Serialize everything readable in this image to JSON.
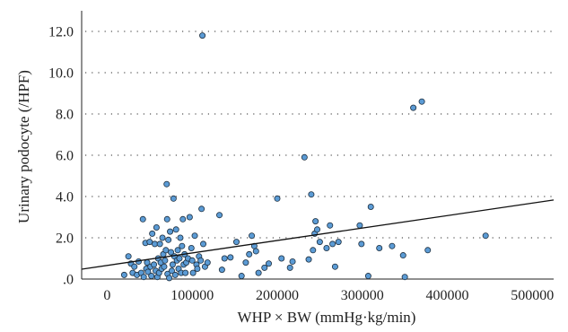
{
  "chart_data": {
    "type": "scatter",
    "title": "",
    "xlabel": "WHP × BW (mmHg·kg/min)",
    "ylabel": "Urinary podocyte (/HPF)",
    "xlim": [
      -30000,
      525000
    ],
    "ylim": [
      0,
      13.0
    ],
    "x_ticks": [
      0,
      100000,
      200000,
      300000,
      400000,
      500000
    ],
    "x_tick_labels": [
      "0",
      "100000",
      "200000",
      "300000",
      "400000",
      "500000"
    ],
    "y_ticks": [
      0,
      2,
      4,
      6,
      8,
      10,
      12
    ],
    "y_tick_labels": [
      ".0",
      "2.0",
      "4.0",
      "6.0",
      "8.0",
      "10.0",
      "12.0"
    ],
    "grid": {
      "horizontal": true,
      "vertical": false,
      "style": "dotted"
    },
    "marker_color": "#5b9bd5",
    "line_color": "#111111",
    "fit_line": {
      "x": [
        -30000,
        525000
      ],
      "y": [
        0.48,
        3.83
      ]
    },
    "series": [
      {
        "points": [
          [
            20000,
            0.2
          ],
          [
            25000,
            1.1
          ],
          [
            28000,
            0.75
          ],
          [
            30000,
            0.3
          ],
          [
            32000,
            0.6
          ],
          [
            35000,
            0.2
          ],
          [
            37000,
            0.85
          ],
          [
            40000,
            0.3
          ],
          [
            42000,
            2.9
          ],
          [
            43000,
            0.1
          ],
          [
            45000,
            1.75
          ],
          [
            46000,
            0.5
          ],
          [
            47000,
            0.8
          ],
          [
            48000,
            0.35
          ],
          [
            50000,
            1.8
          ],
          [
            51000,
            0.6
          ],
          [
            52000,
            0.15
          ],
          [
            53000,
            2.2
          ],
          [
            55000,
            0.7
          ],
          [
            56000,
            1.7
          ],
          [
            57000,
            0.4
          ],
          [
            58000,
            2.5
          ],
          [
            59000,
            0.1
          ],
          [
            60000,
            1.0
          ],
          [
            61000,
            0.3
          ],
          [
            62000,
            1.7
          ],
          [
            63000,
            0.8
          ],
          [
            64000,
            0.5
          ],
          [
            65000,
            2.0
          ],
          [
            66000,
            1.2
          ],
          [
            67000,
            0.6
          ],
          [
            68000,
            0.9
          ],
          [
            69000,
            1.4
          ],
          [
            70000,
            4.6
          ],
          [
            70500,
            2.9
          ],
          [
            71000,
            0.25
          ],
          [
            72000,
            1.9
          ],
          [
            73000,
            0.05
          ],
          [
            74000,
            2.3
          ],
          [
            75000,
            1.3
          ],
          [
            76000,
            0.4
          ],
          [
            77000,
            0.7
          ],
          [
            78000,
            3.9
          ],
          [
            79000,
            1.1
          ],
          [
            80000,
            0.2
          ],
          [
            81000,
            2.4
          ],
          [
            82000,
            0.9
          ],
          [
            83000,
            1.4
          ],
          [
            84000,
            0.5
          ],
          [
            85000,
            1.0
          ],
          [
            86000,
            2.0
          ],
          [
            87000,
            0.3
          ],
          [
            88000,
            1.6
          ],
          [
            89000,
            2.9
          ],
          [
            90000,
            0.7
          ],
          [
            91000,
            1.2
          ],
          [
            92000,
            0.3
          ],
          [
            93000,
            0.8
          ],
          [
            95000,
            1.0
          ],
          [
            97000,
            3.0
          ],
          [
            99000,
            1.5
          ],
          [
            100000,
            0.9
          ],
          [
            101000,
            0.3
          ],
          [
            103000,
            2.1
          ],
          [
            105000,
            0.7
          ],
          [
            106000,
            0.5
          ],
          [
            108000,
            1.1
          ],
          [
            110000,
            0.9
          ],
          [
            111000,
            3.4
          ],
          [
            112000,
            11.8
          ],
          [
            113000,
            1.7
          ],
          [
            115000,
            0.6
          ],
          [
            118000,
            0.8
          ],
          [
            132000,
            3.1
          ],
          [
            135000,
            0.45
          ],
          [
            138000,
            1.0
          ],
          [
            145000,
            1.05
          ],
          [
            152000,
            1.8
          ],
          [
            158000,
            0.15
          ],
          [
            163000,
            0.8
          ],
          [
            167000,
            1.2
          ],
          [
            170000,
            2.1
          ],
          [
            173000,
            1.6
          ],
          [
            175000,
            1.35
          ],
          [
            178000,
            0.3
          ],
          [
            185000,
            0.55
          ],
          [
            190000,
            0.75
          ],
          [
            200000,
            3.9
          ],
          [
            205000,
            1.0
          ],
          [
            215000,
            0.55
          ],
          [
            218000,
            0.85
          ],
          [
            232000,
            5.9
          ],
          [
            237000,
            0.95
          ],
          [
            240000,
            4.1
          ],
          [
            242000,
            1.4
          ],
          [
            244000,
            2.2
          ],
          [
            245000,
            2.8
          ],
          [
            247000,
            2.4
          ],
          [
            250000,
            1.8
          ],
          [
            258000,
            1.5
          ],
          [
            262000,
            2.6
          ],
          [
            265000,
            1.7
          ],
          [
            268000,
            0.6
          ],
          [
            272000,
            1.8
          ],
          [
            297000,
            2.6
          ],
          [
            299000,
            1.7
          ],
          [
            307000,
            0.15
          ],
          [
            310000,
            3.5
          ],
          [
            320000,
            1.5
          ],
          [
            335000,
            1.6
          ],
          [
            348000,
            1.15
          ],
          [
            350000,
            0.1
          ],
          [
            360000,
            8.3
          ],
          [
            370000,
            8.6
          ],
          [
            377000,
            1.4
          ],
          [
            445000,
            2.1
          ]
        ]
      }
    ]
  }
}
